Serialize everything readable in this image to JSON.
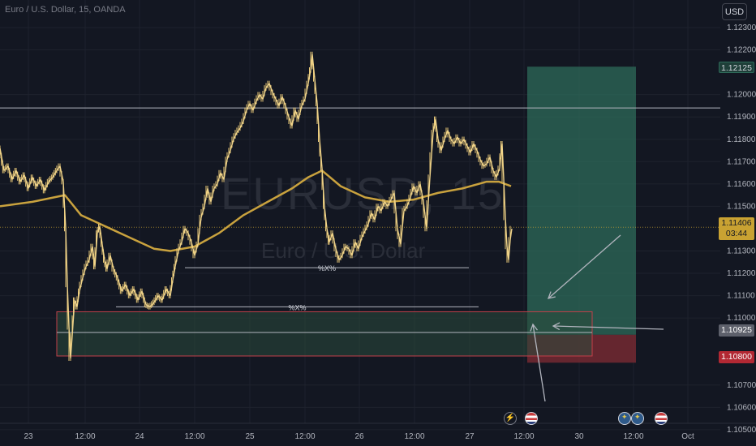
{
  "symbol_title": "Euro / U.S. Dollar, 15, OANDA",
  "watermark_symbol": "EURUSD, 15",
  "watermark_name": "Euro / U.S. Dollar",
  "currency_button": "USD",
  "colors": {
    "background": "#131722",
    "candle": "#e8c878",
    "moving_average": "#c9a23e",
    "position_profit": "#2e6b5a",
    "position_loss": "#7a2b33",
    "zone_fill": "#2a4a3c",
    "zone_border": "#c2404a",
    "line": "#b2b5be"
  },
  "chart_data": {
    "type": "candlestick",
    "timeframe": "15",
    "ylim": [
      1.1045,
      1.1235
    ],
    "y_ticks": [
      "1.12300",
      "1.12200",
      "1.12000",
      "1.11900",
      "1.11800",
      "1.11700",
      "1.11600",
      "1.11500",
      "1.11300",
      "1.11200",
      "1.11100",
      "1.11000",
      "1.10700",
      "1.10600",
      "1.10500"
    ],
    "x_ticks": [
      "23",
      "12:00",
      "24",
      "12:00",
      "25",
      "12:00",
      "26",
      "12:00",
      "27",
      "12:00",
      "30",
      "12:00",
      "Oct"
    ],
    "price_path": [
      [
        0,
        1.1176
      ],
      [
        5,
        1.1166
      ],
      [
        10,
        1.1168
      ],
      [
        15,
        1.1162
      ],
      [
        20,
        1.1166
      ],
      [
        25,
        1.1161
      ],
      [
        30,
        1.1164
      ],
      [
        35,
        1.1158
      ],
      [
        40,
        1.1163
      ],
      [
        45,
        1.1159
      ],
      [
        50,
        1.1162
      ],
      [
        55,
        1.1157
      ],
      [
        60,
        1.1161
      ],
      [
        65,
        1.1163
      ],
      [
        70,
        1.1166
      ],
      [
        74,
        1.1168
      ],
      [
        78,
        1.1161
      ],
      [
        81,
        1.114
      ],
      [
        83,
        1.1115
      ],
      [
        85,
        1.1096
      ],
      [
        87,
        1.1082
      ],
      [
        89,
        1.1092
      ],
      [
        92,
        1.1108
      ],
      [
        95,
        1.1105
      ],
      [
        98,
        1.1112
      ],
      [
        102,
        1.1118
      ],
      [
        106,
        1.1123
      ],
      [
        110,
        1.1126
      ],
      [
        114,
        1.1132
      ],
      [
        117,
        1.1123
      ],
      [
        120,
        1.1138
      ],
      [
        123,
        1.1141
      ],
      [
        126,
        1.1133
      ],
      [
        129,
        1.1126
      ],
      [
        132,
        1.1122
      ],
      [
        136,
        1.1128
      ],
      [
        140,
        1.1122
      ],
      [
        145,
        1.1118
      ],
      [
        150,
        1.1112
      ],
      [
        155,
        1.1115
      ],
      [
        160,
        1.111
      ],
      [
        165,
        1.1113
      ],
      [
        170,
        1.1108
      ],
      [
        175,
        1.1112
      ],
      [
        180,
        1.1106
      ],
      [
        185,
        1.1105
      ],
      [
        190,
        1.1107
      ],
      [
        195,
        1.111
      ],
      [
        200,
        1.1108
      ],
      [
        205,
        1.1113
      ],
      [
        210,
        1.111
      ],
      [
        213,
        1.1117
      ],
      [
        216,
        1.1123
      ],
      [
        220,
        1.113
      ],
      [
        224,
        1.1134
      ],
      [
        228,
        1.114
      ],
      [
        232,
        1.1138
      ],
      [
        236,
        1.1134
      ],
      [
        240,
        1.1128
      ],
      [
        244,
        1.1133
      ],
      [
        248,
        1.1145
      ],
      [
        252,
        1.115
      ],
      [
        256,
        1.1158
      ],
      [
        260,
        1.1152
      ],
      [
        264,
        1.1158
      ],
      [
        268,
        1.116
      ],
      [
        272,
        1.1165
      ],
      [
        276,
        1.1162
      ],
      [
        280,
        1.1171
      ],
      [
        284,
        1.1175
      ],
      [
        288,
        1.118
      ],
      [
        292,
        1.1183
      ],
      [
        296,
        1.1185
      ],
      [
        300,
        1.1188
      ],
      [
        304,
        1.1193
      ],
      [
        308,
        1.1196
      ],
      [
        312,
        1.1193
      ],
      [
        316,
        1.1197
      ],
      [
        320,
        1.12
      ],
      [
        324,
        1.1198
      ],
      [
        328,
        1.1203
      ],
      [
        332,
        1.1205
      ],
      [
        336,
        1.1201
      ],
      [
        340,
        1.1198
      ],
      [
        344,
        1.1195
      ],
      [
        348,
        1.1199
      ],
      [
        352,
        1.1195
      ],
      [
        356,
        1.119
      ],
      [
        360,
        1.1186
      ],
      [
        364,
        1.1193
      ],
      [
        368,
        1.1189
      ],
      [
        372,
        1.1195
      ],
      [
        376,
        1.1198
      ],
      [
        380,
        1.1205
      ],
      [
        383,
        1.1211
      ],
      [
        385,
        1.1218
      ],
      [
        388,
        1.1207
      ],
      [
        391,
        1.1196
      ],
      [
        394,
        1.118
      ],
      [
        397,
        1.1167
      ],
      [
        400,
        1.115
      ],
      [
        403,
        1.114
      ],
      [
        406,
        1.1134
      ],
      [
        410,
        1.1138
      ],
      [
        414,
        1.1131
      ],
      [
        418,
        1.1126
      ],
      [
        422,
        1.1128
      ],
      [
        426,
        1.1132
      ],
      [
        430,
        1.1131
      ],
      [
        434,
        1.1128
      ],
      [
        438,
        1.1134
      ],
      [
        442,
        1.1131
      ],
      [
        446,
        1.1136
      ],
      [
        450,
        1.1139
      ],
      [
        454,
        1.1142
      ],
      [
        458,
        1.1147
      ],
      [
        462,
        1.1144
      ],
      [
        466,
        1.115
      ],
      [
        470,
        1.1148
      ],
      [
        474,
        1.1152
      ],
      [
        478,
        1.115
      ],
      [
        482,
        1.1153
      ],
      [
        486,
        1.1156
      ],
      [
        490,
        1.114
      ],
      [
        494,
        1.1133
      ],
      [
        498,
        1.1148
      ],
      [
        502,
        1.115
      ],
      [
        506,
        1.1154
      ],
      [
        510,
        1.1159
      ],
      [
        514,
        1.1156
      ],
      [
        518,
        1.116
      ],
      [
        522,
        1.1152
      ],
      [
        526,
        1.114
      ],
      [
        530,
        1.1163
      ],
      [
        534,
        1.1183
      ],
      [
        537,
        1.1189
      ],
      [
        540,
        1.118
      ],
      [
        544,
        1.1175
      ],
      [
        548,
        1.118
      ],
      [
        552,
        1.1184
      ],
      [
        556,
        1.118
      ],
      [
        560,
        1.1178
      ],
      [
        564,
        1.1181
      ],
      [
        568,
        1.1178
      ],
      [
        572,
        1.118
      ],
      [
        576,
        1.1177
      ],
      [
        580,
        1.1174
      ],
      [
        584,
        1.1178
      ],
      [
        588,
        1.1175
      ],
      [
        592,
        1.1171
      ],
      [
        596,
        1.1168
      ],
      [
        600,
        1.1169
      ],
      [
        604,
        1.1172
      ],
      [
        608,
        1.1166
      ],
      [
        612,
        1.1163
      ],
      [
        616,
        1.1167
      ],
      [
        619,
        1.1178
      ],
      [
        621,
        1.1162
      ],
      [
        623,
        1.1145
      ],
      [
        625,
        1.1132
      ],
      [
        627,
        1.1126
      ],
      [
        629,
        1.1135
      ],
      [
        631,
        1.114
      ]
    ],
    "moving_average_path": [
      [
        0,
        1.115
      ],
      [
        40,
        1.1152
      ],
      [
        80,
        1.1155
      ],
      [
        100,
        1.1146
      ],
      [
        130,
        1.1141
      ],
      [
        160,
        1.1136
      ],
      [
        190,
        1.1131
      ],
      [
        210,
        1.113
      ],
      [
        240,
        1.1132
      ],
      [
        270,
        1.1138
      ],
      [
        300,
        1.1146
      ],
      [
        330,
        1.1152
      ],
      [
        360,
        1.1158
      ],
      [
        380,
        1.1163
      ],
      [
        397,
        1.1166
      ],
      [
        420,
        1.1159
      ],
      [
        450,
        1.1154
      ],
      [
        480,
        1.1152
      ],
      [
        510,
        1.1153
      ],
      [
        540,
        1.1156
      ],
      [
        570,
        1.1158
      ],
      [
        600,
        1.1161
      ],
      [
        615,
        1.1161
      ],
      [
        630,
        1.1159
      ]
    ],
    "horizontal_lines": [
      {
        "price": 1.1194
      },
      {
        "price": 1.11225,
        "label": "%X%"
      },
      {
        "price": 1.1105,
        "label": "%X%"
      }
    ],
    "demand_zone": {
      "top": 1.11028,
      "mid": 1.10935,
      "bottom": 1.1083
    },
    "long_position": {
      "entry": 1.10925,
      "target": 1.12125,
      "stop": 1.108
    },
    "last_price": 1.11406,
    "countdown": "03:44",
    "price_labels": {
      "target": "1.12125",
      "last": "1.11406",
      "entry": "1.10925",
      "stop": "1.10800"
    }
  },
  "events": [
    {
      "icon": "flash-icon"
    },
    {
      "icon": "us-flag-icon"
    },
    {
      "icon": "eu-flag-icon"
    },
    {
      "icon": "eu-flag-icon"
    },
    {
      "icon": "us-flag-icon"
    }
  ]
}
